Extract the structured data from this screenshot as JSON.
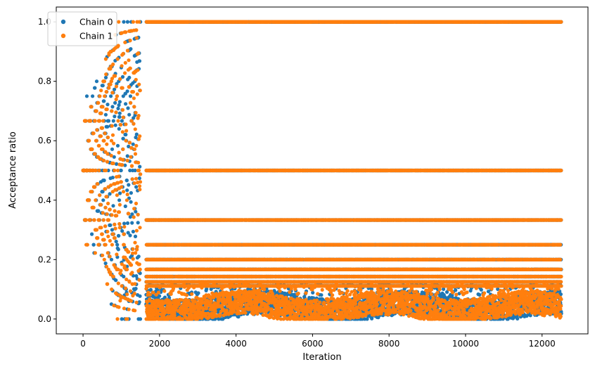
{
  "chart_data": {
    "type": "scatter",
    "xlabel": "Iteration",
    "ylabel": "Acceptance ratio",
    "xlim": [
      -700,
      13200
    ],
    "ylim": [
      -0.05,
      1.05
    ],
    "x_ticks": [
      0,
      2000,
      4000,
      6000,
      8000,
      10000,
      12000
    ],
    "y_ticks": [
      0.0,
      0.2,
      0.4,
      0.6,
      0.8,
      1.0
    ],
    "x_tick_labels": [
      "0",
      "2000",
      "4000",
      "6000",
      "8000",
      "10000",
      "12000"
    ],
    "y_tick_labels": [
      "0.0",
      "0.2",
      "0.4",
      "0.6",
      "0.8",
      "1.0"
    ],
    "grid": false,
    "legend_position": "top-left",
    "total_iterations": 12500,
    "burn_in_end": 1500,
    "fixed_levels": [
      1.0,
      0.5,
      0.3333,
      0.25,
      0.2,
      0.1667,
      0.1429,
      0.125,
      0.1111
    ],
    "series": [
      {
        "name": "Chain 0",
        "color": "#1f77b4",
        "seed": 7
      },
      {
        "name": "Chain 1",
        "color": "#ff7f0e",
        "seed": 13
      }
    ]
  }
}
